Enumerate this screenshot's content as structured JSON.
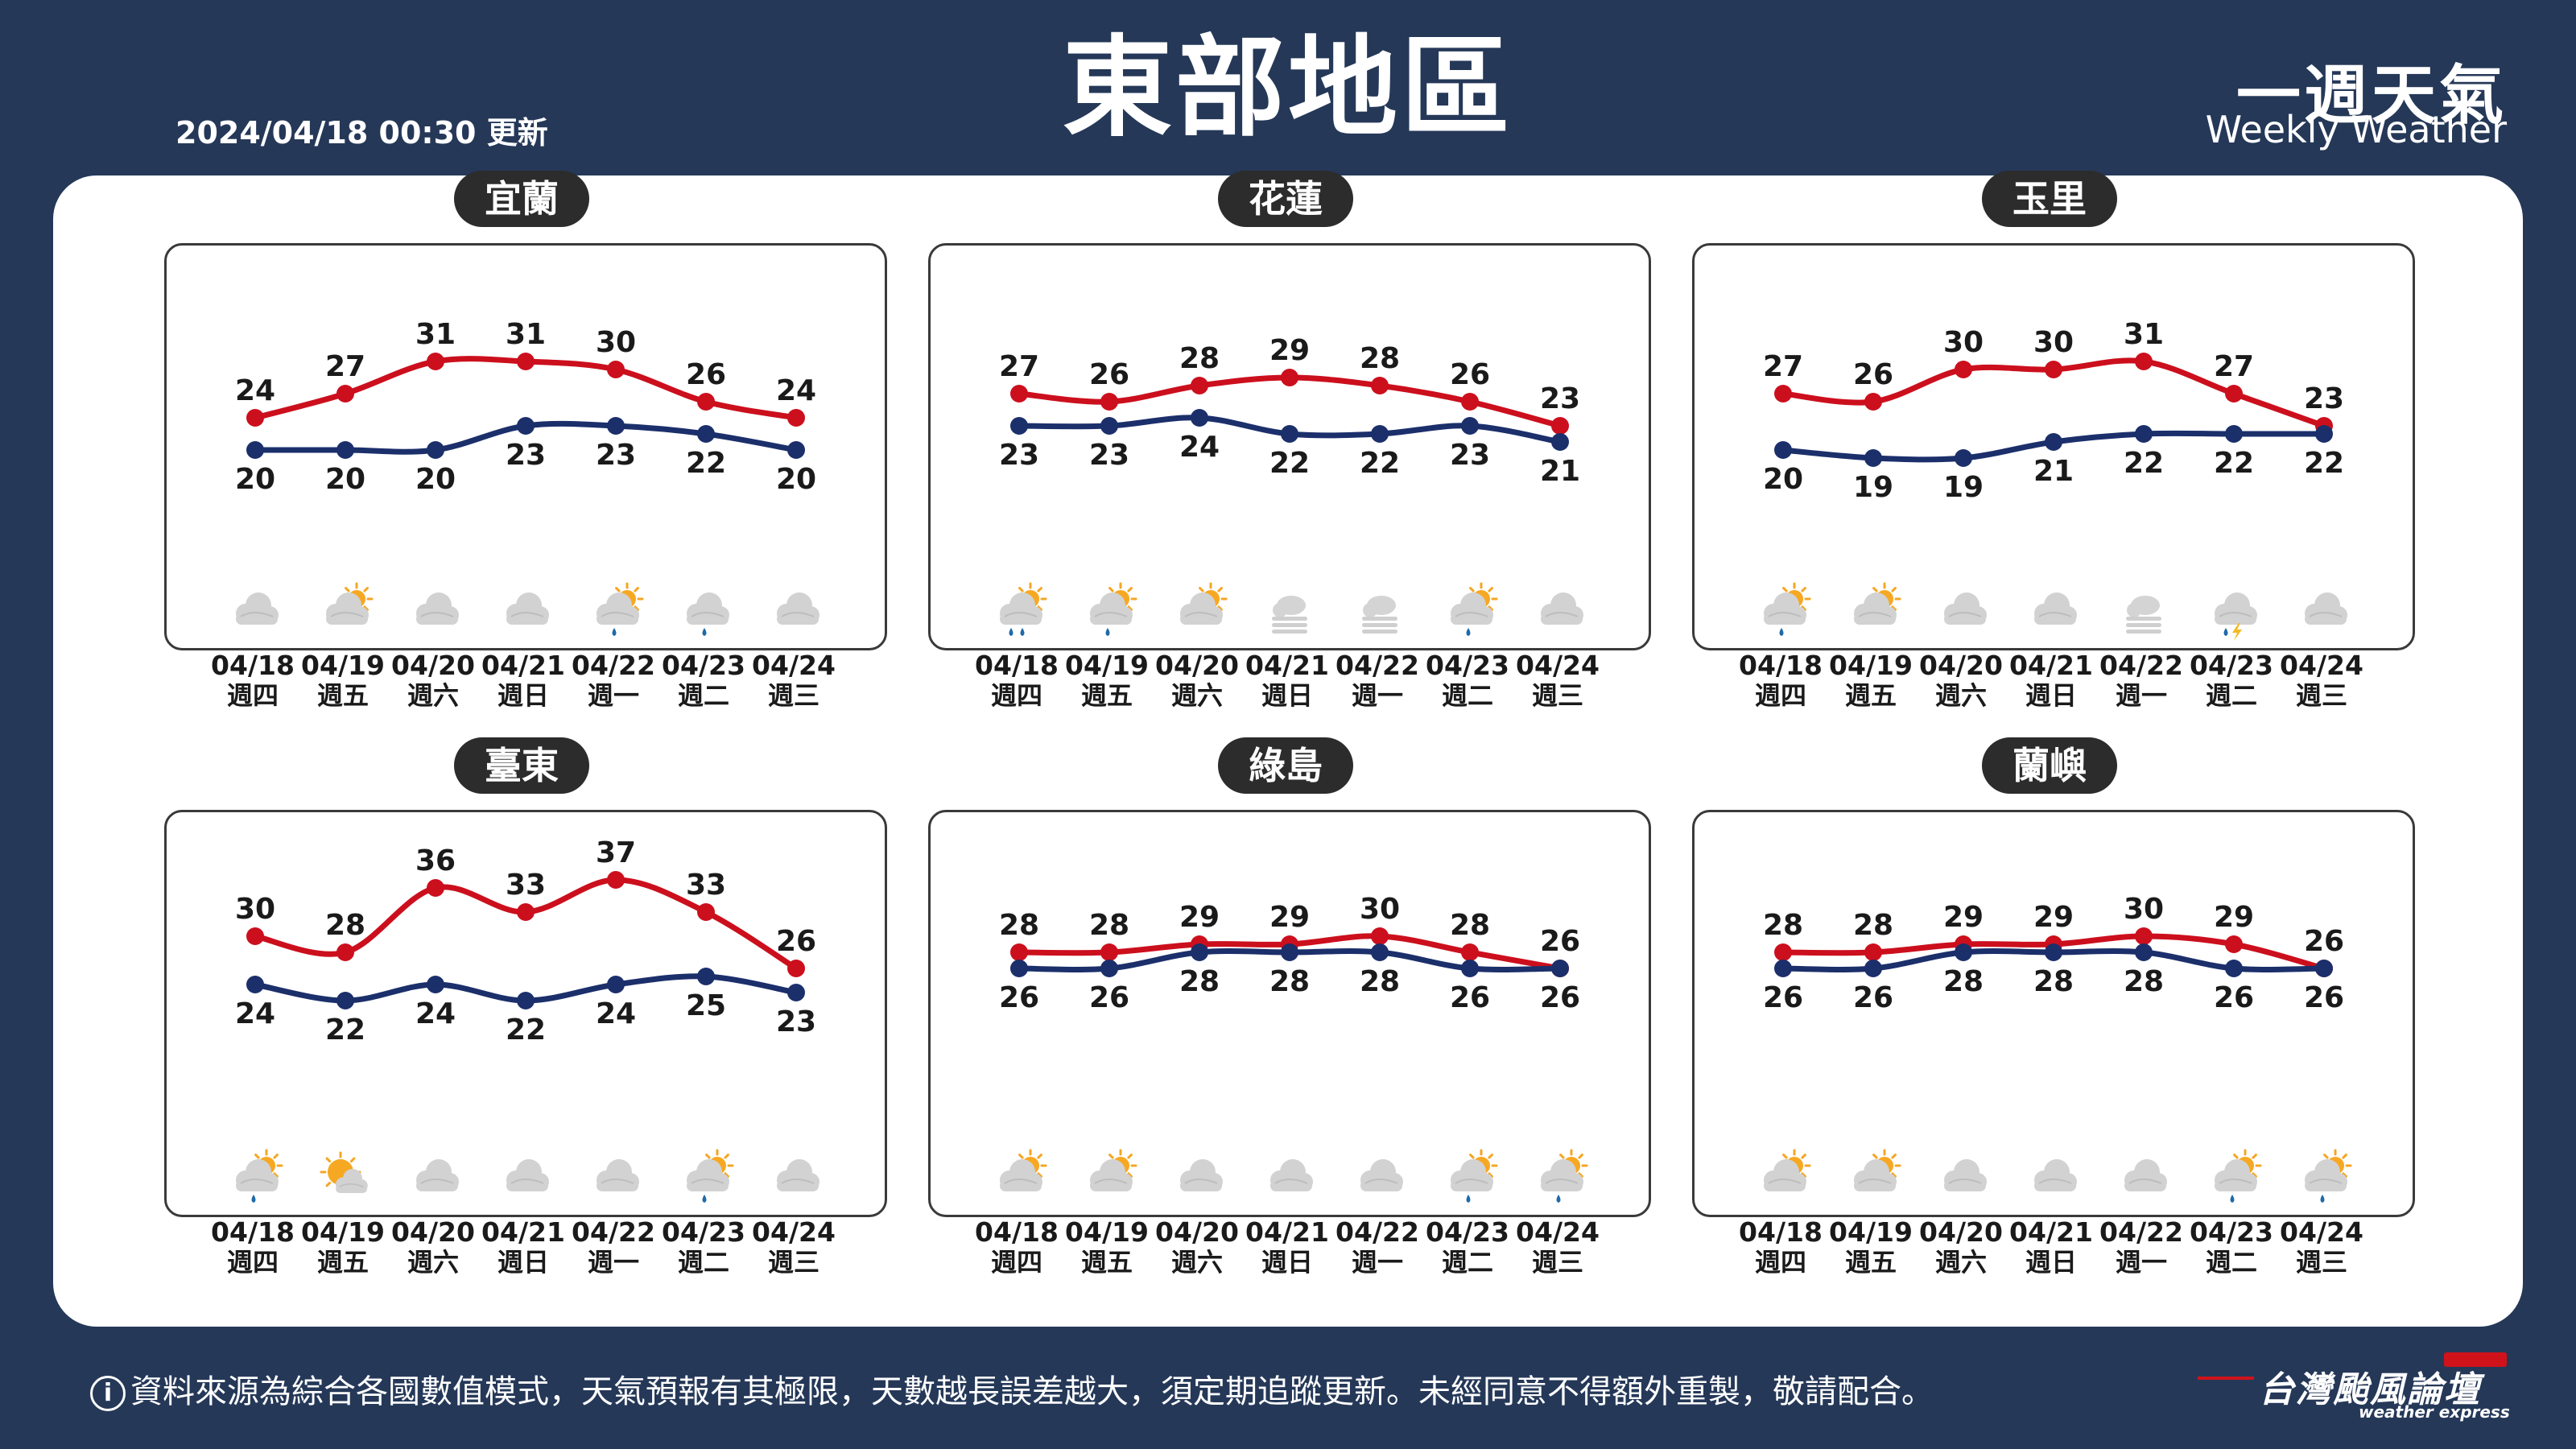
{
  "header": {
    "title": "東部地區",
    "update_time": "2024/04/18 00:30 更新",
    "brand_zh": "一週天氣",
    "brand_en": "Weekly Weather"
  },
  "colors": {
    "high": "#cc0f1d",
    "low": "#1b2f6b",
    "background": "#253858"
  },
  "dates": [
    {
      "date": "04/18",
      "weekday": "週四"
    },
    {
      "date": "04/19",
      "weekday": "週五"
    },
    {
      "date": "04/20",
      "weekday": "週六"
    },
    {
      "date": "04/21",
      "weekday": "週日"
    },
    {
      "date": "04/22",
      "weekday": "週一"
    },
    {
      "date": "04/23",
      "weekday": "週二"
    },
    {
      "date": "04/24",
      "weekday": "週三"
    }
  ],
  "chart_data": [
    {
      "type": "line",
      "station": "宜蘭",
      "x": [
        "04/18",
        "04/19",
        "04/20",
        "04/21",
        "04/22",
        "04/23",
        "04/24"
      ],
      "series": [
        {
          "name": "high",
          "values": [
            24,
            27,
            31,
            31,
            30,
            26,
            24
          ]
        },
        {
          "name": "low",
          "values": [
            20,
            20,
            20,
            23,
            23,
            22,
            20
          ]
        }
      ],
      "weather_icons": [
        "cloudy",
        "partly-sunny",
        "cloudy",
        "cloudy",
        "sun-cloud-rain",
        "cloud-rain",
        "cloudy"
      ]
    },
    {
      "type": "line",
      "station": "花蓮",
      "x": [
        "04/18",
        "04/19",
        "04/20",
        "04/21",
        "04/22",
        "04/23",
        "04/24"
      ],
      "series": [
        {
          "name": "high",
          "values": [
            27,
            26,
            28,
            29,
            28,
            26,
            23
          ]
        },
        {
          "name": "low",
          "values": [
            23,
            23,
            24,
            22,
            22,
            23,
            21
          ]
        }
      ],
      "weather_icons": [
        "sun-cloud-heavy-rain",
        "sun-cloud-rain",
        "partly-sunny",
        "fog",
        "fog",
        "sun-cloud-rain",
        "cloudy"
      ]
    },
    {
      "type": "line",
      "station": "玉里",
      "x": [
        "04/18",
        "04/19",
        "04/20",
        "04/21",
        "04/22",
        "04/23",
        "04/24"
      ],
      "series": [
        {
          "name": "high",
          "values": [
            27,
            26,
            30,
            30,
            31,
            27,
            23
          ]
        },
        {
          "name": "low",
          "values": [
            20,
            19,
            19,
            21,
            22,
            22,
            22
          ]
        }
      ],
      "weather_icons": [
        "sun-cloud-rain",
        "partly-sunny",
        "cloudy",
        "cloudy",
        "fog",
        "thunderstorm",
        "cloudy"
      ]
    },
    {
      "type": "line",
      "station": "臺東",
      "x": [
        "04/18",
        "04/19",
        "04/20",
        "04/21",
        "04/22",
        "04/23",
        "04/24"
      ],
      "series": [
        {
          "name": "high",
          "values": [
            30,
            28,
            36,
            33,
            37,
            33,
            26
          ]
        },
        {
          "name": "low",
          "values": [
            24,
            22,
            24,
            22,
            24,
            25,
            23
          ]
        }
      ],
      "weather_icons": [
        "sun-cloud-rain",
        "mostly-sunny",
        "cloudy",
        "cloudy",
        "cloudy",
        "sun-cloud-rain",
        "cloudy"
      ]
    },
    {
      "type": "line",
      "station": "綠島",
      "x": [
        "04/18",
        "04/19",
        "04/20",
        "04/21",
        "04/22",
        "04/23",
        "04/24"
      ],
      "series": [
        {
          "name": "high",
          "values": [
            28,
            28,
            29,
            29,
            30,
            28,
            26
          ]
        },
        {
          "name": "low",
          "values": [
            26,
            26,
            28,
            28,
            28,
            26,
            26
          ]
        }
      ],
      "weather_icons": [
        "partly-sunny",
        "partly-sunny",
        "cloudy",
        "cloudy",
        "cloudy",
        "sun-cloud-rain",
        "sun-cloud-rain"
      ]
    },
    {
      "type": "line",
      "station": "蘭嶼",
      "x": [
        "04/18",
        "04/19",
        "04/20",
        "04/21",
        "04/22",
        "04/23",
        "04/24"
      ],
      "series": [
        {
          "name": "high",
          "values": [
            28,
            28,
            29,
            29,
            30,
            29,
            26
          ]
        },
        {
          "name": "low",
          "values": [
            26,
            26,
            28,
            28,
            28,
            26,
            26
          ]
        }
      ],
      "weather_icons": [
        "partly-sunny",
        "partly-sunny",
        "cloudy",
        "cloudy",
        "cloudy",
        "sun-cloud-rain",
        "sun-cloud-rain"
      ]
    }
  ],
  "footer": {
    "note": "資料來源為綜合各國數值模式，天氣預報有其極限，天數越長誤差越大，須定期追蹤更新。未經同意不得額外重製，敬請配合。",
    "logo_zh": "台灣颱風論壇",
    "logo_en": "weather express"
  }
}
